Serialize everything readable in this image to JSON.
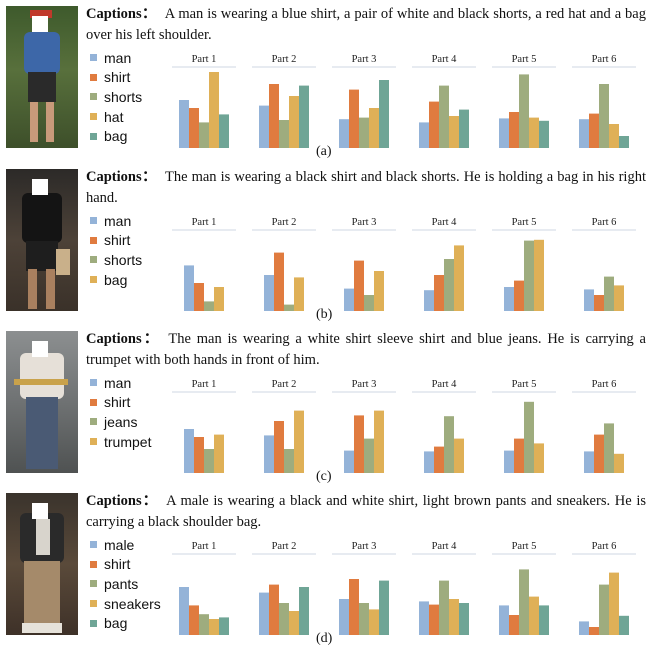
{
  "colors": {
    "blue": "#94b3d8",
    "orange": "#e07b3f",
    "green": "#9eac7e",
    "gold": "#dfb057",
    "teal": "#6fa596"
  },
  "caption_prefix": "Captions：",
  "panels": [
    {
      "label": "(a)",
      "caption": "A man is wearing a blue shirt, a pair of white and black shorts, a red hat and a bag over his left shoulder.",
      "legend": [
        {
          "name": "man",
          "color": "blue"
        },
        {
          "name": "shirt",
          "color": "orange"
        },
        {
          "name": "shorts",
          "color": "green"
        },
        {
          "name": "hat",
          "color": "gold"
        },
        {
          "name": "bag",
          "color": "teal"
        }
      ],
      "chart_data": {
        "type": "bar",
        "categories": [
          "Part 1",
          "Part 2",
          "Part 3",
          "Part 4",
          "Part 5",
          "Part 6"
        ],
        "series": [
          {
            "name": "man",
            "values": [
              0.6,
              0.53,
              0.36,
              0.32,
              0.37,
              0.36
            ]
          },
          {
            "name": "shirt",
            "values": [
              0.5,
              0.8,
              0.73,
              0.58,
              0.45,
              0.43
            ]
          },
          {
            "name": "shorts",
            "values": [
              0.32,
              0.35,
              0.38,
              0.78,
              0.92,
              0.8
            ]
          },
          {
            "name": "hat",
            "values": [
              0.95,
              0.65,
              0.5,
              0.4,
              0.38,
              0.3
            ]
          },
          {
            "name": "bag",
            "values": [
              0.42,
              0.78,
              0.85,
              0.48,
              0.34,
              0.15
            ]
          }
        ]
      }
    },
    {
      "label": "(b)",
      "caption": "The man is wearing a black shirt and black shorts. He is holding a bag in his right hand.",
      "legend": [
        {
          "name": "man",
          "color": "blue"
        },
        {
          "name": "shirt",
          "color": "orange"
        },
        {
          "name": "shorts",
          "color": "green"
        },
        {
          "name": "bag",
          "color": "gold"
        }
      ],
      "chart_data": {
        "type": "bar",
        "categories": [
          "Part 1",
          "Part 2",
          "Part 3",
          "Part 4",
          "Part 5",
          "Part 6"
        ],
        "series": [
          {
            "name": "man",
            "values": [
              0.57,
              0.45,
              0.28,
              0.26,
              0.3,
              0.27
            ]
          },
          {
            "name": "shirt",
            "values": [
              0.35,
              0.73,
              0.63,
              0.45,
              0.38,
              0.2
            ]
          },
          {
            "name": "shorts",
            "values": [
              0.12,
              0.08,
              0.2,
              0.65,
              0.88,
              0.43
            ]
          },
          {
            "name": "bag",
            "values": [
              0.3,
              0.42,
              0.5,
              0.82,
              0.89,
              0.32
            ]
          }
        ]
      }
    },
    {
      "label": "(c)",
      "caption": "The man is wearing a white shirt sleeve shirt and blue jeans. He is carrying a trumpet with both hands in front of him.",
      "legend": [
        {
          "name": "man",
          "color": "blue"
        },
        {
          "name": "shirt",
          "color": "orange"
        },
        {
          "name": "jeans",
          "color": "green"
        },
        {
          "name": "trumpet",
          "color": "gold"
        }
      ],
      "chart_data": {
        "type": "bar",
        "categories": [
          "Part 1",
          "Part 2",
          "Part 3",
          "Part 4",
          "Part 5",
          "Part 6"
        ],
        "series": [
          {
            "name": "man",
            "values": [
              0.55,
              0.47,
              0.28,
              0.27,
              0.28,
              0.27
            ]
          },
          {
            "name": "shirt",
            "values": [
              0.45,
              0.65,
              0.72,
              0.33,
              0.43,
              0.48
            ]
          },
          {
            "name": "jeans",
            "values": [
              0.3,
              0.3,
              0.43,
              0.71,
              0.89,
              0.62
            ]
          },
          {
            "name": "trumpet",
            "values": [
              0.48,
              0.78,
              0.78,
              0.43,
              0.37,
              0.24
            ]
          }
        ]
      }
    },
    {
      "label": "(d)",
      "caption": "A male is wearing a black and white shirt, light brown pants and sneakers. He is carrying a black shoulder bag.",
      "legend": [
        {
          "name": "male",
          "color": "blue"
        },
        {
          "name": "shirt",
          "color": "orange"
        },
        {
          "name": "pants",
          "color": "green"
        },
        {
          "name": "sneakers",
          "color": "gold"
        },
        {
          "name": "bag",
          "color": "teal"
        }
      ],
      "chart_data": {
        "type": "bar",
        "categories": [
          "Part 1",
          "Part 2",
          "Part 3",
          "Part 4",
          "Part 5",
          "Part 6"
        ],
        "series": [
          {
            "name": "male",
            "values": [
              0.6,
              0.53,
              0.45,
              0.42,
              0.37,
              0.17
            ]
          },
          {
            "name": "shirt",
            "values": [
              0.37,
              0.63,
              0.7,
              0.38,
              0.25,
              0.1
            ]
          },
          {
            "name": "pants",
            "values": [
              0.26,
              0.4,
              0.4,
              0.68,
              0.82,
              0.63
            ]
          },
          {
            "name": "sneakers",
            "values": [
              0.2,
              0.3,
              0.32,
              0.45,
              0.48,
              0.78
            ]
          },
          {
            "name": "bag",
            "values": [
              0.22,
              0.6,
              0.68,
              0.4,
              0.37,
              0.24
            ]
          }
        ]
      }
    }
  ]
}
